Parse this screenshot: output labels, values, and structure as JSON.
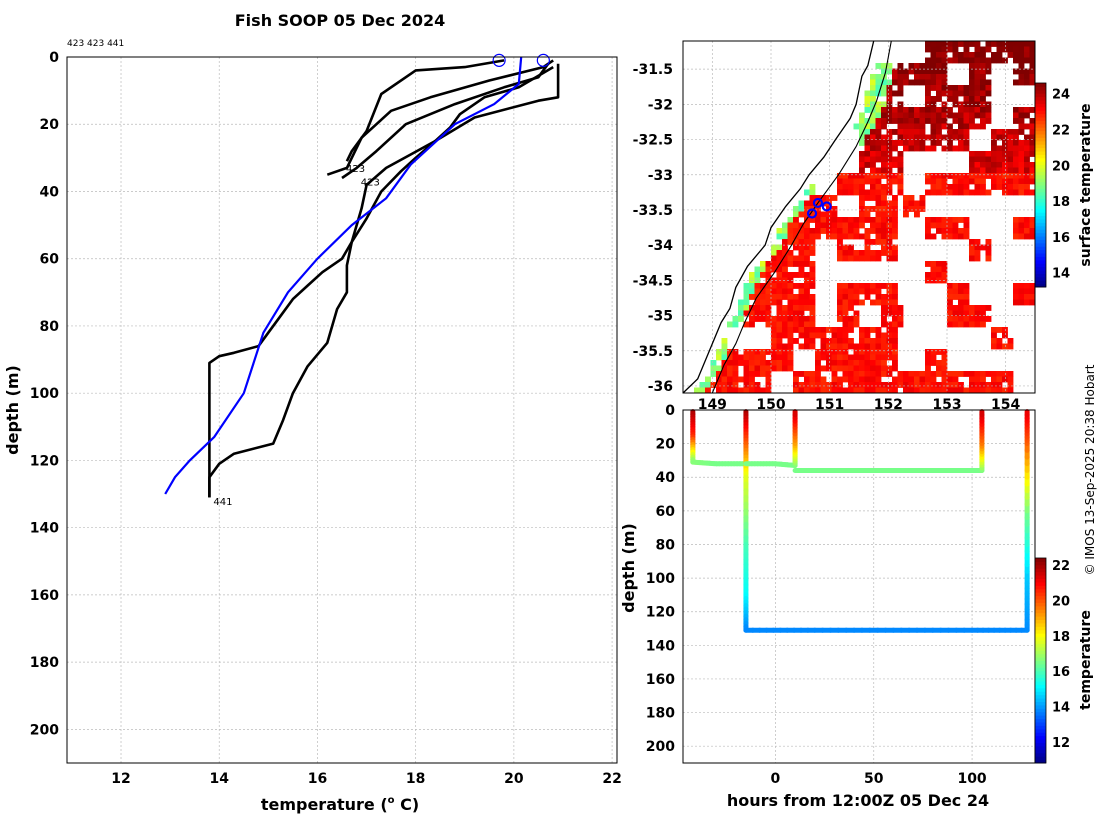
{
  "title": "Fish SOOP 05 Dec 2024",
  "credit": "© IMOS 13-Sep-2025 20:38 Hobart",
  "colors": {
    "profile": "#000000",
    "climatology": "#0000ff",
    "grid": "#bbbbbb",
    "land_coast": "#000000"
  },
  "chart_data": [
    {
      "type": "line",
      "name": "temperature-depth-profiles",
      "xlabel": "temperature (o C)",
      "xlabel_main": "temperature (",
      "xlabel_sup": "o",
      "xlabel_end": " C)",
      "ylabel": "depth (m)",
      "xlim": [
        10.9,
        22.1
      ],
      "ylim": [
        210,
        0
      ],
      "y_reversed": true,
      "xticks": [
        12,
        14,
        16,
        18,
        20,
        22
      ],
      "yticks": [
        0,
        20,
        40,
        60,
        80,
        100,
        120,
        140,
        160,
        180,
        200
      ],
      "grid": true,
      "corner_label": "423 423 441",
      "series": [
        {
          "label": "423",
          "color": "#000000",
          "points": [
            [
              19.8,
              1
            ],
            [
              19.0,
              3
            ],
            [
              18.0,
              4
            ],
            [
              17.3,
              11
            ],
            [
              17.0,
              22
            ],
            [
              16.7,
              28
            ],
            [
              16.6,
              31
            ]
          ]
        },
        {
          "label": "423",
          "color": "#000000",
          "points": [
            [
              20.8,
              1
            ],
            [
              20.6,
              3
            ],
            [
              19.5,
              7
            ],
            [
              18.3,
              12
            ],
            [
              17.5,
              16
            ],
            [
              16.9,
              24
            ],
            [
              16.6,
              33
            ],
            [
              16.2,
              35
            ]
          ]
        },
        {
          "label": "423",
          "color": "#000000",
          "points": [
            [
              20.7,
              2
            ],
            [
              20.5,
              6
            ],
            [
              19.8,
              9
            ],
            [
              18.8,
              14
            ],
            [
              17.8,
              20
            ],
            [
              17.2,
              28
            ],
            [
              16.8,
              33
            ],
            [
              16.5,
              36
            ]
          ]
        },
        {
          "label": "441",
          "color": "#000000",
          "points": [
            [
              20.9,
              2
            ],
            [
              20.9,
              12
            ],
            [
              20.5,
              13
            ],
            [
              19.2,
              18
            ],
            [
              18.4,
              25
            ],
            [
              17.9,
              29
            ],
            [
              17.4,
              33
            ],
            [
              17.0,
              38
            ],
            [
              16.9,
              45
            ],
            [
              16.7,
              55
            ],
            [
              16.6,
              62
            ],
            [
              16.6,
              70
            ],
            [
              16.4,
              75
            ],
            [
              16.2,
              85
            ],
            [
              15.8,
              92
            ],
            [
              15.5,
              100
            ],
            [
              15.3,
              108
            ],
            [
              15.1,
              115
            ],
            [
              14.3,
              118
            ],
            [
              14.0,
              121
            ],
            [
              13.8,
              125
            ],
            [
              13.8,
              131
            ]
          ]
        },
        {
          "label": "",
          "color": "#000000",
          "points": [
            [
              20.8,
              3
            ],
            [
              20.1,
              9
            ],
            [
              19.4,
              12
            ],
            [
              18.9,
              17
            ],
            [
              18.7,
              21
            ],
            [
              18.4,
              25
            ],
            [
              18.0,
              30
            ],
            [
              17.7,
              34
            ],
            [
              17.3,
              40
            ],
            [
              17.0,
              48
            ],
            [
              16.7,
              55
            ],
            [
              16.5,
              60
            ],
            [
              16.1,
              64
            ],
            [
              15.8,
              68
            ],
            [
              15.5,
              72
            ],
            [
              15.2,
              78
            ],
            [
              15.0,
              82
            ],
            [
              14.8,
              86
            ],
            [
              14.3,
              88
            ],
            [
              14.0,
              89
            ],
            [
              13.8,
              91
            ],
            [
              13.8,
              131
            ]
          ]
        }
      ],
      "climatology": {
        "label": "",
        "color": "#0000ff",
        "points": [
          [
            20.15,
            0
          ],
          [
            20.1,
            8
          ],
          [
            19.6,
            14
          ],
          [
            18.8,
            20
          ],
          [
            17.9,
            32
          ],
          [
            17.4,
            42
          ],
          [
            16.7,
            50
          ],
          [
            16.0,
            60
          ],
          [
            15.4,
            70
          ],
          [
            14.9,
            82
          ],
          [
            14.5,
            100
          ],
          [
            13.9,
            113
          ],
          [
            13.4,
            120
          ],
          [
            13.1,
            125
          ],
          [
            12.9,
            130
          ]
        ]
      },
      "surface_markers": [
        19.7,
        20.6
      ],
      "end_labels": [
        {
          "text": "423",
          "x": 16.5,
          "y": 33
        },
        {
          "text": "423",
          "x": 16.8,
          "y": 37
        },
        {
          "text": "441",
          "x": 13.8,
          "y": 132
        }
      ]
    },
    {
      "type": "heatmap",
      "name": "surface-temperature-map",
      "xlim": [
        148.5,
        154.5
      ],
      "ylim": [
        -36.1,
        -31.1
      ],
      "xticks": [
        149,
        150,
        151,
        152,
        153,
        154
      ],
      "yticks": [
        -31.5,
        -32,
        -32.5,
        -33,
        -33.5,
        -34,
        -34.5,
        -35,
        -35.5,
        -36
      ],
      "ytick_labels": [
        "-31.5",
        "-32",
        "-32.5",
        "-33",
        "-33.5",
        "-34",
        "-34.5",
        "-35",
        "-35.5",
        "-36"
      ],
      "grid": true,
      "colorbar": {
        "label": "surface temperature",
        "min": 13.2,
        "max": 24.6,
        "ticks": [
          14,
          16,
          18,
          20,
          22,
          24
        ]
      },
      "coastline": [
        [
          148.5,
          -36.1
        ],
        [
          148.75,
          -35.9
        ],
        [
          148.95,
          -35.5
        ],
        [
          149.15,
          -35.1
        ],
        [
          149.3,
          -34.9
        ],
        [
          149.4,
          -34.6
        ],
        [
          149.6,
          -34.3
        ],
        [
          149.9,
          -34.0
        ],
        [
          150.0,
          -33.75
        ],
        [
          150.25,
          -33.45
        ],
        [
          150.5,
          -33.2
        ],
        [
          150.65,
          -33.0
        ],
        [
          150.9,
          -32.75
        ],
        [
          151.1,
          -32.5
        ],
        [
          151.35,
          -32.2
        ],
        [
          151.45,
          -32.0
        ],
        [
          151.5,
          -31.8
        ],
        [
          151.55,
          -31.6
        ],
        [
          151.65,
          -31.45
        ],
        [
          151.75,
          -31.1
        ]
      ],
      "shelf_contour": [
        [
          149.0,
          -36.1
        ],
        [
          149.2,
          -35.7
        ],
        [
          149.4,
          -35.4
        ],
        [
          149.55,
          -35.1
        ],
        [
          149.75,
          -34.75
        ],
        [
          150.05,
          -34.4
        ],
        [
          150.35,
          -34.0
        ],
        [
          150.55,
          -33.7
        ],
        [
          150.8,
          -33.4
        ],
        [
          151.15,
          -33.0
        ],
        [
          151.45,
          -32.6
        ],
        [
          151.65,
          -32.25
        ],
        [
          151.8,
          -31.95
        ],
        [
          151.95,
          -31.55
        ],
        [
          152.05,
          -31.1
        ]
      ],
      "markers": [
        [
          150.7,
          -33.55
        ],
        [
          150.8,
          -33.4
        ],
        [
          150.95,
          -33.45
        ]
      ]
    },
    {
      "type": "line",
      "name": "depth-time-track",
      "xlabel": "hours from 12:00Z 05 Dec 24",
      "ylabel": "depth (m)",
      "xlim": [
        -47,
        132
      ],
      "ylim": [
        210,
        0
      ],
      "y_reversed": true,
      "xticks": [
        0,
        50,
        100
      ],
      "yticks": [
        0,
        20,
        40,
        60,
        80,
        100,
        120,
        140,
        160,
        180,
        200
      ],
      "grid": true,
      "colorbar": {
        "label": "temperature",
        "min": 10.8,
        "max": 22.4,
        "ticks": [
          12,
          14,
          16,
          18,
          20,
          22
        ]
      },
      "tracks": [
        {
          "points": [
            [
              -42,
              1,
              22.0
            ],
            [
              -42,
              16,
              20.5
            ],
            [
              -42,
              31,
              16.7
            ],
            [
              -30,
              32,
              16.5
            ],
            [
              -15,
              32,
              16.5
            ]
          ]
        },
        {
          "points": [
            [
              -15,
              1,
              22.0
            ],
            [
              -15,
              20,
              20.0
            ],
            [
              -15,
              40,
              17.8
            ],
            [
              -15,
              80,
              16.0
            ],
            [
              -15,
              110,
              15.2
            ],
            [
              -15,
              131,
              13.8
            ],
            [
              20,
              131,
              13.8
            ],
            [
              60,
              131,
              13.8
            ],
            [
              100,
              131,
              13.8
            ],
            [
              128,
              131,
              13.8
            ],
            [
              128,
              100,
              14.5
            ],
            [
              128,
              60,
              16.5
            ],
            [
              128,
              20,
              19.8
            ],
            [
              128,
              1,
              21.2
            ]
          ]
        },
        {
          "points": [
            [
              -15,
              32,
              16.5
            ],
            [
              0,
              32,
              16.5
            ],
            [
              10,
              33,
              16.5
            ],
            [
              10,
              20,
              19.0
            ],
            [
              10,
              1,
              21.5
            ]
          ]
        },
        {
          "points": [
            [
              10,
              36,
              16.5
            ],
            [
              40,
              36,
              16.5
            ],
            [
              70,
              36,
              16.5
            ],
            [
              105,
              36,
              16.5
            ],
            [
              105,
              20,
              19.5
            ],
            [
              105,
              1,
              21.5
            ]
          ]
        }
      ]
    }
  ]
}
